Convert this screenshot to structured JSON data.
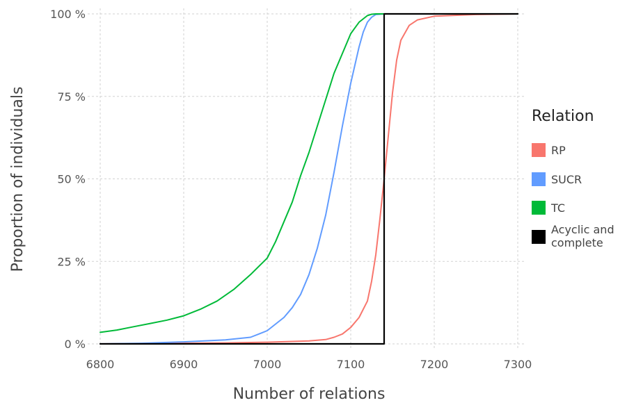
{
  "chart_data": {
    "type": "line",
    "xlabel": "Number of relations",
    "ylabel": "Proportion of individuals",
    "xlim": [
      6800,
      7300
    ],
    "ylim": [
      0,
      100
    ],
    "x_ticks": [
      6800,
      6900,
      7000,
      7100,
      7200,
      7300
    ],
    "x_tick_labels": [
      "6800",
      "6900",
      "7000",
      "7100",
      "7200",
      "7300"
    ],
    "y_ticks": [
      0,
      25,
      50,
      75,
      100
    ],
    "y_tick_labels": [
      "0 %",
      "25 %",
      "50 %",
      "75 %",
      "100 %"
    ],
    "grid": true,
    "legend": {
      "title": "Relation",
      "placement": "right",
      "entries": [
        {
          "label": "RP",
          "color": "#f8766d"
        },
        {
          "label": "SUCR",
          "color": "#619cff"
        },
        {
          "label": "TC",
          "color": "#00ba38"
        },
        {
          "label": "Acyclic and complete",
          "label_lines": [
            "Acyclic and",
            "complete"
          ],
          "color": "#000000"
        }
      ]
    },
    "series": [
      {
        "name": "RP",
        "color": "#f8766d",
        "x": [
          6800,
          6850,
          6900,
          6950,
          7000,
          7050,
          7070,
          7080,
          7090,
          7100,
          7110,
          7120,
          7125,
          7130,
          7135,
          7140,
          7145,
          7150,
          7155,
          7160,
          7170,
          7180,
          7200,
          7250,
          7300
        ],
        "y": [
          0,
          0.1,
          0.2,
          0.3,
          0.5,
          0.9,
          1.3,
          2,
          3,
          5,
          8,
          13,
          19,
          27,
          38,
          50,
          63,
          76,
          86,
          92,
          96.5,
          98.2,
          99.3,
          99.8,
          100
        ]
      },
      {
        "name": "SUCR",
        "color": "#619cff",
        "x": [
          6800,
          6850,
          6900,
          6950,
          6980,
          6990,
          7000,
          7010,
          7020,
          7030,
          7040,
          7050,
          7060,
          7070,
          7080,
          7090,
          7100,
          7110,
          7115,
          7120,
          7125,
          7130,
          7140,
          7200,
          7300
        ],
        "y": [
          0,
          0.2,
          0.6,
          1.2,
          2,
          3,
          4,
          6,
          8,
          11,
          15,
          21,
          29,
          39,
          52,
          66,
          79,
          90,
          94.5,
          97.5,
          99,
          99.8,
          100,
          100,
          100
        ]
      },
      {
        "name": "TC",
        "color": "#00ba38",
        "x": [
          6800,
          6820,
          6840,
          6860,
          6880,
          6900,
          6920,
          6940,
          6960,
          6980,
          7000,
          7010,
          7020,
          7030,
          7040,
          7050,
          7060,
          7070,
          7080,
          7090,
          7100,
          7110,
          7120,
          7125,
          7130,
          7140,
          7200,
          7300
        ],
        "y": [
          3.5,
          4.2,
          5.2,
          6.2,
          7.2,
          8.5,
          10.5,
          13,
          16.5,
          21,
          26,
          31,
          37,
          43,
          51,
          58,
          66,
          74,
          82,
          88,
          94,
          97.5,
          99.5,
          99.9,
          100,
          100,
          100,
          100
        ]
      },
      {
        "name": "Acyclic and complete",
        "color": "#000000",
        "x": [
          6800,
          7140,
          7140,
          7300
        ],
        "y": [
          0,
          0,
          100,
          100
        ]
      }
    ]
  }
}
